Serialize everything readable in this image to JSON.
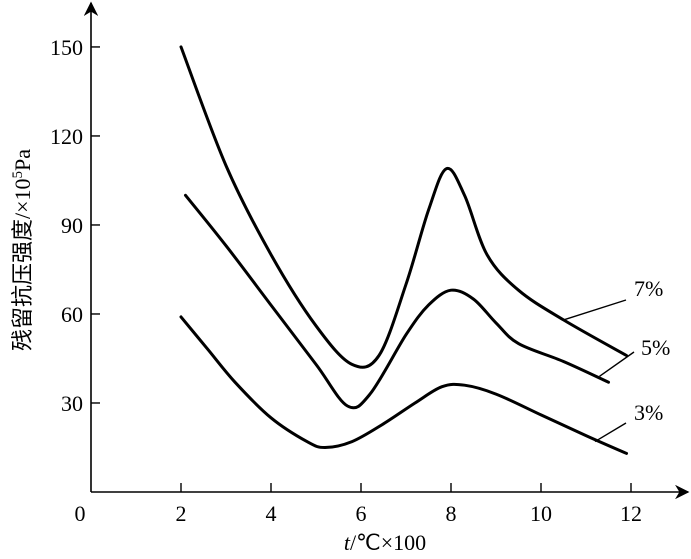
{
  "chart_data": {
    "type": "line",
    "xlabel_var": "t",
    "xlabel_unit": "/℃×100",
    "ylabel": "残留抗压强度/×10",
    "ylabel_exp": "5",
    "ylabel_unit": "Pa",
    "xlim": [
      0,
      13.2
    ],
    "ylim": [
      0,
      160
    ],
    "x_origin_label": "0",
    "xticks": [
      2,
      4,
      6,
      8,
      10,
      12
    ],
    "xtick_labels": [
      "2",
      "4",
      "6",
      "8",
      "10",
      "12"
    ],
    "yticks": [
      30,
      60,
      90,
      120,
      150
    ],
    "ytick_labels": [
      "30",
      "60",
      "90",
      "120",
      "150"
    ],
    "grid": false,
    "series": [
      {
        "name": "7%",
        "x": [
          2.0,
          3.0,
          4.0,
          5.0,
          5.8,
          6.4,
          7.0,
          7.5,
          7.9,
          8.3,
          8.8,
          9.5,
          10.5,
          11.9
        ],
        "y": [
          150,
          110,
          80,
          56,
          43,
          46,
          70,
          95,
          109,
          100,
          80,
          68,
          58,
          46
        ]
      },
      {
        "name": "5%",
        "x": [
          2.1,
          3.0,
          4.0,
          5.0,
          5.7,
          6.2,
          7.0,
          7.5,
          8.0,
          8.5,
          9.0,
          9.5,
          10.5,
          11.5
        ],
        "y": [
          100,
          83,
          63,
          43,
          29,
          33,
          53,
          63,
          68,
          65,
          57,
          50,
          44,
          37
        ]
      },
      {
        "name": "3%",
        "x": [
          2.0,
          2.6,
          3.2,
          4.0,
          4.8,
          5.2,
          5.8,
          6.5,
          7.2,
          7.8,
          8.3,
          9.0,
          10.0,
          11.0,
          11.9
        ],
        "y": [
          59,
          48,
          37,
          25,
          17,
          15,
          17,
          23,
          30,
          35.5,
          36,
          33,
          26,
          19,
          13
        ]
      }
    ]
  }
}
